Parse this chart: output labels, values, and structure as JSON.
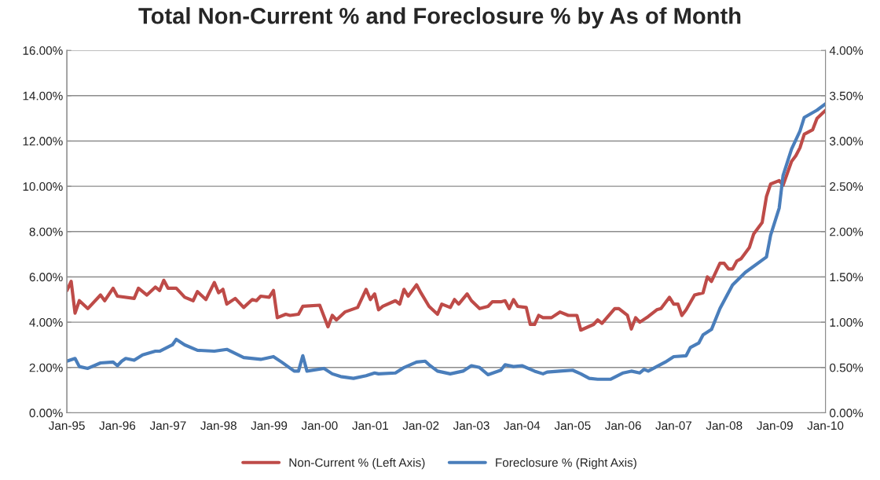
{
  "chart_data": {
    "type": "line",
    "title": "Total Non-Current % and Foreclosure % by As of Month",
    "xlim": [
      "1995-01",
      "2010-01"
    ],
    "xticks": [
      {
        "value": "1995-01",
        "label": "Jan-95"
      },
      {
        "value": "1996-01",
        "label": "Jan-96"
      },
      {
        "value": "1997-01",
        "label": "Jan-97"
      },
      {
        "value": "1998-01",
        "label": "Jan-98"
      },
      {
        "value": "1999-01",
        "label": "Jan-99"
      },
      {
        "value": "2000-01",
        "label": "Jan-00"
      },
      {
        "value": "2001-01",
        "label": "Jan-01"
      },
      {
        "value": "2002-01",
        "label": "Jan-02"
      },
      {
        "value": "2003-01",
        "label": "Jan-03"
      },
      {
        "value": "2004-01",
        "label": "Jan-04"
      },
      {
        "value": "2005-01",
        "label": "Jan-05"
      },
      {
        "value": "2006-01",
        "label": "Jan-06"
      },
      {
        "value": "2007-01",
        "label": "Jan-07"
      },
      {
        "value": "2008-01",
        "label": "Jan-08"
      },
      {
        "value": "2009-01",
        "label": "Jan-09"
      },
      {
        "value": "2010-01",
        "label": "Jan-10"
      }
    ],
    "ylim": [
      0,
      16
    ],
    "yticks": [
      {
        "value": 0,
        "label": "0.00%"
      },
      {
        "value": 2,
        "label": "2.00%"
      },
      {
        "value": 4,
        "label": "4.00%"
      },
      {
        "value": 6,
        "label": "6.00%"
      },
      {
        "value": 8,
        "label": "8.00%"
      },
      {
        "value": 10,
        "label": "10.00%"
      },
      {
        "value": 12,
        "label": "12.00%"
      },
      {
        "value": 14,
        "label": "14.00%"
      },
      {
        "value": 16,
        "label": "16.00%"
      }
    ],
    "y2lim": [
      0,
      4
    ],
    "y2ticks": [
      {
        "value": 0,
        "label": "0.00%"
      },
      {
        "value": 0.5,
        "label": "0.50%"
      },
      {
        "value": 1,
        "label": "1.00%"
      },
      {
        "value": 1.5,
        "label": "1.50%"
      },
      {
        "value": 2,
        "label": "2.00%"
      },
      {
        "value": 2.5,
        "label": "2.50%"
      },
      {
        "value": 3,
        "label": "3.00%"
      },
      {
        "value": 3.5,
        "label": "3.50%"
      },
      {
        "value": 4,
        "label": "4.00%"
      }
    ],
    "grid": "y",
    "legend": "bottom",
    "line_style": "solid",
    "marker": "none",
    "series": [
      {
        "name": "Non-Current % (Left Axis)",
        "color": "#be4b48",
        "x": [
          "1995-01",
          "1995-02",
          "1995-03",
          "1995-04",
          "1995-06",
          "1995-09",
          "1995-10",
          "1995-12",
          "1996-01",
          "1996-05",
          "1996-06",
          "1996-08",
          "1996-10",
          "1996-11",
          "1996-12",
          "1997-01",
          "1997-03",
          "1997-04",
          "1997-05",
          "1997-07",
          "1997-08",
          "1997-10",
          "1997-12",
          "1998-01",
          "1998-02",
          "1998-03",
          "1998-05",
          "1998-07",
          "1998-09",
          "1998-10",
          "1998-11",
          "1999-01",
          "1999-02",
          "1999-03",
          "1999-05",
          "1999-06",
          "1999-08",
          "1999-09",
          "2000-01",
          "2000-03",
          "2000-04",
          "2000-05",
          "2000-07",
          "2000-10",
          "2000-12",
          "2001-01",
          "2001-02",
          "2001-03",
          "2001-04",
          "2001-07",
          "2001-08",
          "2001-09",
          "2001-10",
          "2001-12",
          "2002-01",
          "2002-03",
          "2002-05",
          "2002-06",
          "2002-08",
          "2002-09",
          "2002-10",
          "2002-12",
          "2003-01",
          "2003-03",
          "2003-05",
          "2003-06",
          "2003-08",
          "2003-09",
          "2003-10",
          "2003-11",
          "2003-12",
          "2004-02",
          "2004-03",
          "2004-04",
          "2004-05",
          "2004-06",
          "2004-08",
          "2004-10",
          "2004-12",
          "2005-02",
          "2005-03",
          "2005-06",
          "2005-07",
          "2005-08",
          "2005-11",
          "2005-12",
          "2006-02",
          "2006-03",
          "2006-04",
          "2006-05",
          "2006-07",
          "2006-09",
          "2006-10",
          "2006-12",
          "2007-01",
          "2007-02",
          "2007-03",
          "2007-04",
          "2007-06",
          "2007-08",
          "2007-09",
          "2007-10",
          "2007-12",
          "2008-01",
          "2008-02",
          "2008-03",
          "2008-04",
          "2008-05",
          "2008-07",
          "2008-08",
          "2008-10",
          "2008-11",
          "2008-12",
          "2009-02",
          "2009-03",
          "2009-05",
          "2009-06",
          "2009-07",
          "2009-08",
          "2009-10",
          "2009-11",
          "2010-01"
        ],
        "values": [
          5.4,
          5.8,
          4.4,
          4.95,
          4.6,
          5.2,
          4.95,
          5.5,
          5.15,
          5.05,
          5.5,
          5.2,
          5.55,
          5.4,
          5.85,
          5.5,
          5.5,
          5.3,
          5.1,
          4.95,
          5.35,
          5.0,
          5.75,
          5.3,
          5.45,
          4.8,
          5.05,
          4.65,
          5.0,
          4.95,
          5.15,
          5.1,
          5.4,
          4.2,
          4.35,
          4.3,
          4.35,
          4.7,
          4.75,
          3.8,
          4.3,
          4.1,
          4.45,
          4.65,
          5.45,
          5.0,
          5.25,
          4.55,
          4.7,
          4.95,
          4.8,
          5.45,
          5.15,
          5.65,
          5.3,
          4.7,
          4.35,
          4.8,
          4.65,
          5.0,
          4.8,
          5.25,
          4.95,
          4.6,
          4.7,
          4.9,
          4.9,
          4.95,
          4.6,
          5.0,
          4.7,
          4.65,
          3.9,
          3.9,
          4.3,
          4.2,
          4.2,
          4.45,
          4.3,
          4.3,
          3.65,
          3.9,
          4.1,
          3.95,
          4.6,
          4.6,
          4.3,
          3.7,
          4.2,
          4.0,
          4.25,
          4.55,
          4.6,
          5.1,
          4.8,
          4.8,
          4.3,
          4.55,
          5.2,
          5.3,
          6.0,
          5.8,
          6.6,
          6.6,
          6.35,
          6.35,
          6.7,
          6.8,
          7.3,
          7.9,
          8.4,
          9.55,
          10.1,
          10.25,
          10.05,
          11.1,
          11.35,
          11.7,
          12.3,
          12.5,
          13.0,
          13.35
        ]
      },
      {
        "name": "Foreclosure % (Right Axis)",
        "color": "#4a7ebb",
        "axis": "y2",
        "x": [
          "1995-01",
          "1995-03",
          "1995-04",
          "1995-06",
          "1995-09",
          "1995-12",
          "1996-01",
          "1996-02",
          "1996-03",
          "1996-05",
          "1996-07",
          "1996-10",
          "1996-11",
          "1997-02",
          "1997-03",
          "1997-05",
          "1997-08",
          "1997-12",
          "1998-03",
          "1998-07",
          "1998-11",
          "1999-02",
          "1999-04",
          "1999-07",
          "1999-08",
          "1999-09",
          "1999-10",
          "2000-02",
          "2000-04",
          "2000-06",
          "2000-09",
          "2000-12",
          "2001-02",
          "2001-03",
          "2001-07",
          "2001-09",
          "2001-12",
          "2002-02",
          "2002-03",
          "2002-05",
          "2002-08",
          "2002-11",
          "2003-01",
          "2003-03",
          "2003-05",
          "2003-08",
          "2003-09",
          "2003-11",
          "2004-01",
          "2004-04",
          "2004-06",
          "2004-07",
          "2004-10",
          "2005-01",
          "2005-03",
          "2005-05",
          "2005-07",
          "2005-10",
          "2006-01",
          "2006-03",
          "2006-05",
          "2006-06",
          "2006-07",
          "2006-11",
          "2007-01",
          "2007-04",
          "2007-05",
          "2007-07",
          "2007-08",
          "2007-10",
          "2007-12",
          "2008-03",
          "2008-06",
          "2008-11",
          "2008-12",
          "2009-02",
          "2009-03",
          "2009-05",
          "2009-07",
          "2009-08",
          "2009-11",
          "2010-01"
        ],
        "values": [
          0.57,
          0.6,
          0.51,
          0.49,
          0.55,
          0.56,
          0.52,
          0.57,
          0.6,
          0.58,
          0.64,
          0.68,
          0.68,
          0.75,
          0.81,
          0.75,
          0.69,
          0.68,
          0.7,
          0.61,
          0.59,
          0.62,
          0.56,
          0.46,
          0.46,
          0.63,
          0.46,
          0.49,
          0.43,
          0.4,
          0.38,
          0.41,
          0.44,
          0.43,
          0.44,
          0.5,
          0.56,
          0.57,
          0.53,
          0.46,
          0.43,
          0.46,
          0.52,
          0.5,
          0.42,
          0.47,
          0.53,
          0.51,
          0.52,
          0.46,
          0.43,
          0.45,
          0.46,
          0.47,
          0.43,
          0.38,
          0.37,
          0.37,
          0.44,
          0.46,
          0.44,
          0.48,
          0.46,
          0.56,
          0.62,
          0.63,
          0.72,
          0.77,
          0.86,
          0.92,
          1.15,
          1.41,
          1.55,
          1.72,
          1.96,
          2.26,
          2.62,
          2.91,
          3.11,
          3.26,
          3.34,
          3.41
        ]
      }
    ]
  }
}
